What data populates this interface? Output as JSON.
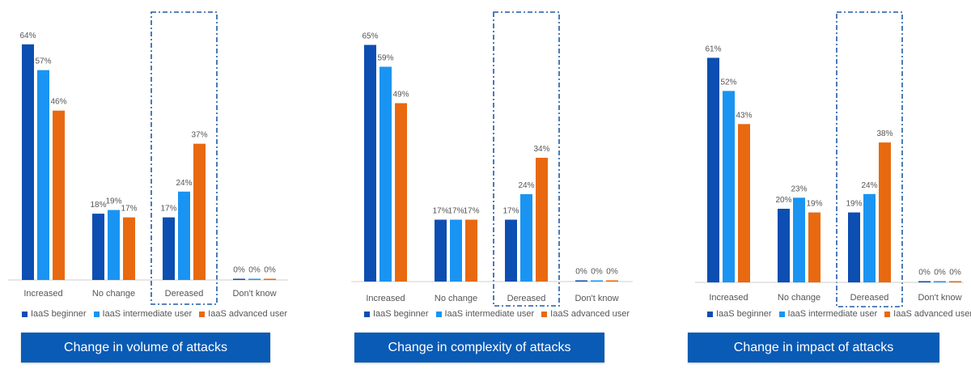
{
  "colors": {
    "beginner": "#0c4eb1",
    "intermediate": "#1a94f2",
    "advanced": "#e8690f",
    "highlight_border": "#1f5aa8",
    "banner_bg": "#0a5bb5"
  },
  "legend": [
    "IaaS beginner",
    "IaaS intermediate user",
    "IaaS advanced user"
  ],
  "chart_data": [
    {
      "type": "bar",
      "title": "Change in volume of attacks",
      "categories": [
        "Increased",
        "No change",
        "Dereased",
        "Don't know"
      ],
      "highlighted_category": "Dereased",
      "ylim": [
        0,
        70
      ],
      "series": [
        {
          "name": "IaaS beginner",
          "values": [
            64,
            18,
            17,
            0
          ],
          "labels": [
            "64%",
            "18%",
            "17%",
            "0%"
          ]
        },
        {
          "name": "IaaS intermediate user",
          "values": [
            57,
            19,
            24,
            0
          ],
          "labels": [
            "57%",
            "19%",
            "24%",
            "0%"
          ]
        },
        {
          "name": "IaaS advanced user",
          "values": [
            46,
            17,
            37,
            0
          ],
          "labels": [
            "46%",
            "17%",
            "37%",
            "0%"
          ]
        }
      ]
    },
    {
      "type": "bar",
      "title": "Change in complexity of attacks",
      "categories": [
        "Increased",
        "No change",
        "Dereased",
        "Don't know"
      ],
      "highlighted_category": "Dereased",
      "ylim": [
        0,
        70
      ],
      "series": [
        {
          "name": "IaaS beginner",
          "values": [
            65,
            17,
            17,
            0
          ],
          "labels": [
            "65%",
            "17%",
            "17%",
            "0%"
          ]
        },
        {
          "name": "IaaS intermediate user",
          "values": [
            59,
            17,
            24,
            0
          ],
          "labels": [
            "59%",
            "17%",
            "24%",
            "0%"
          ]
        },
        {
          "name": "IaaS advanced user",
          "values": [
            49,
            17,
            34,
            0
          ],
          "labels": [
            "49%",
            "17%",
            "34%",
            "0%"
          ]
        }
      ]
    },
    {
      "type": "bar",
      "title": "Change in impact of attacks",
      "categories": [
        "Increased",
        "No change",
        "Dereased",
        "Don't know"
      ],
      "highlighted_category": "Dereased",
      "ylim": [
        0,
        70
      ],
      "series": [
        {
          "name": "IaaS beginner",
          "values": [
            61,
            20,
            19,
            0
          ],
          "labels": [
            "61%",
            "20%",
            "19%",
            "0%"
          ]
        },
        {
          "name": "IaaS intermediate user",
          "values": [
            52,
            23,
            24,
            0
          ],
          "labels": [
            "52%",
            "23%",
            "24%",
            "0%"
          ]
        },
        {
          "name": "IaaS advanced user",
          "values": [
            43,
            19,
            38,
            0
          ],
          "labels": [
            "43%",
            "19%",
            "38%",
            "0%"
          ]
        }
      ]
    }
  ]
}
